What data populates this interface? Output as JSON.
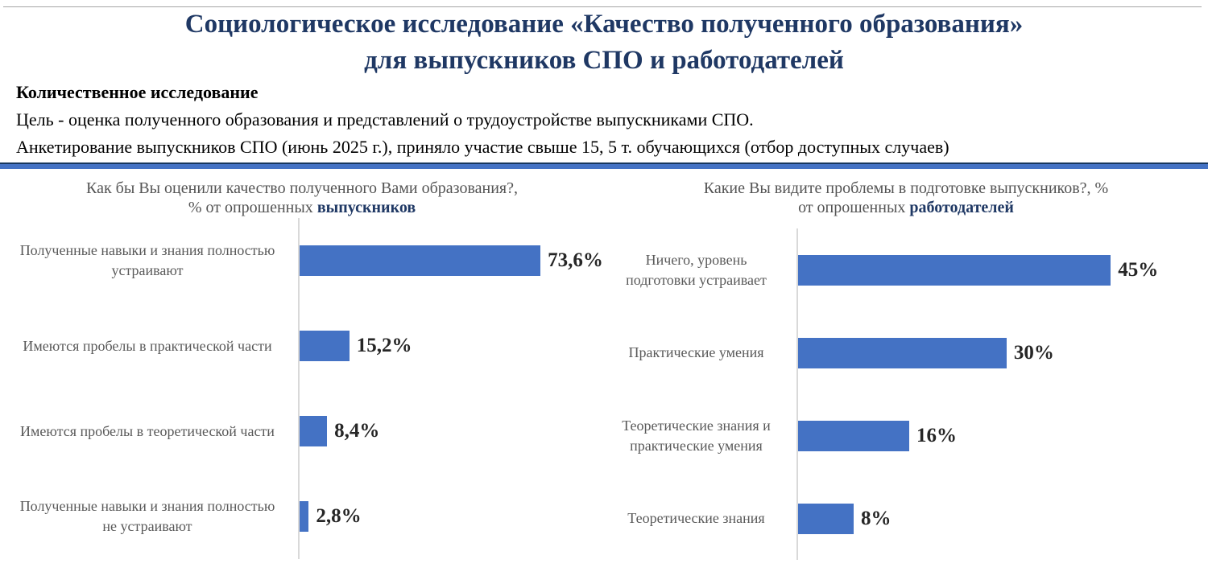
{
  "header": {
    "title_line1": "Социологическое исследование «Качество полученного образования»",
    "title_line2": "для выпускников СПО и работодателей"
  },
  "intro": {
    "heading": "Количественное исследование",
    "goal": "Цель - оценка полученного образования и представлений о трудоустройстве выпускниками СПО.",
    "survey": "Анкетирование выпускников СПО (июнь 2025 г.), приняло участие свыше 15, 5 т. обучающихся (отбор доступных случаев)"
  },
  "colors": {
    "bar_blue": "#4472C4",
    "title_navy": "#1F3864",
    "chart_text_gray": "#595959",
    "axis_line_gray": "#D9D9D9",
    "divider_blue": "#4472C4"
  },
  "chart_data": [
    {
      "type": "bar",
      "orientation": "horizontal",
      "title": "Как бы Вы оценили качество полученного Вами образования?, % от опрошенных выпускников",
      "title_line1": "Как бы Вы оценили качество полученного Вами образования?,",
      "title_line2_normal": "% от опрошенных ",
      "title_line2_bold": "выпускников",
      "categories": [
        "Полученные навыки и знания полностью устраивают",
        "Имеются пробелы в практической части",
        "Имеются пробелы в теоретической части",
        "Полученные навыки и знания полностью не устраивают"
      ],
      "label_lines": [
        [
          "Полученные навыки и знания полностью",
          "устраивают"
        ],
        [
          "Имеются пробелы в практической части"
        ],
        [
          "Имеются пробелы в теоретической части"
        ],
        [
          "Полученные навыки и знания полностью",
          "не устраивают"
        ]
      ],
      "values": [
        73.6,
        15.2,
        8.4,
        2.8
      ],
      "value_labels": [
        "73,6%",
        "15,2%",
        "8,4%",
        "2,8%"
      ],
      "unit": "%",
      "xlim": [
        0,
        93
      ],
      "grid": false,
      "legend": "none"
    },
    {
      "type": "bar",
      "orientation": "horizontal",
      "title": "Какие Вы видите проблемы в подготовке выпускников?, % от опрошенных работодателей",
      "title_line1": "Какие Вы видите проблемы в подготовке выпускников?, %",
      "title_line2_normal": "от опрошенных ",
      "title_line2_bold": "работодателей",
      "categories": [
        "Ничего, уровень подготовки устраивает",
        "Практические умения",
        "Теоретические знания и практические умения",
        "Теоретические знания"
      ],
      "label_lines": [
        [
          "Ничего, уровень",
          "подготовки устраивает"
        ],
        [
          "Практические умения"
        ],
        [
          "Теоретические знания и",
          "практические умения"
        ],
        [
          "Теоретические знания"
        ]
      ],
      "values": [
        45,
        30,
        16,
        8
      ],
      "value_labels": [
        "45%",
        "30%",
        "16%",
        "8%"
      ],
      "unit": "%",
      "xlim": [
        0,
        59
      ],
      "grid": false,
      "legend": "none"
    }
  ]
}
